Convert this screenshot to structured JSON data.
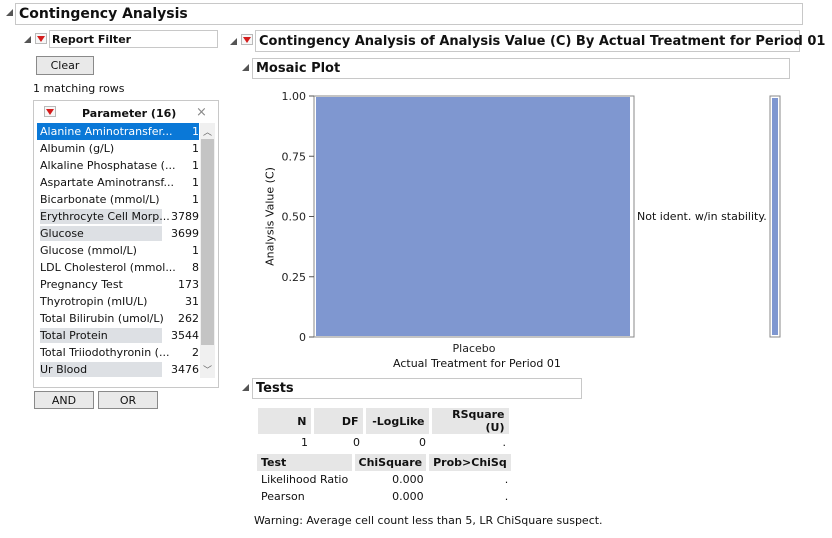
{
  "main": {
    "title": "Contingency Analysis"
  },
  "filter": {
    "title": "Report Filter",
    "clear_label": "Clear",
    "matching": "1 matching rows",
    "param_title": "Parameter (16)",
    "items": [
      {
        "label": "Alanine Aminotransfer...",
        "count": "1",
        "selected": true
      },
      {
        "label": "Albumin (g/L)",
        "count": "1"
      },
      {
        "label": "Alkaline Phosphatase (...",
        "count": "1"
      },
      {
        "label": "Aspartate Aminotransf...",
        "count": "1"
      },
      {
        "label": "Bicarbonate (mmol/L)",
        "count": "1"
      },
      {
        "label": "Erythrocyte Cell Morp...",
        "count": "3789",
        "bar": true
      },
      {
        "label": "Glucose",
        "count": "3699",
        "bar": true
      },
      {
        "label": "Glucose (mmol/L)",
        "count": "1"
      },
      {
        "label": "LDL Cholesterol (mmol...",
        "count": "8"
      },
      {
        "label": "Pregnancy Test",
        "count": "173"
      },
      {
        "label": "Thyrotropin (mIU/L)",
        "count": "31"
      },
      {
        "label": "Total Bilirubin (umol/L)",
        "count": "262"
      },
      {
        "label": "Total Protein",
        "count": "3544",
        "bar": true
      },
      {
        "label": "Total Triiodothyronin (...",
        "count": "2"
      },
      {
        "label": "Ur Blood",
        "count": "3476",
        "bar": true
      }
    ],
    "and_label": "AND",
    "or_label": "OR"
  },
  "analysis": {
    "title": "Contingency Analysis of Analysis Value (C) By Actual Treatment for Period 01"
  },
  "mosaic": {
    "title": "Mosaic Plot"
  },
  "chart_data": {
    "type": "bar",
    "categories": [
      "Placebo"
    ],
    "values": [
      1.0
    ],
    "xlabel": "Actual Treatment for Period 01",
    "ylabel": "Analysis Value (C)",
    "ylim": [
      0,
      1
    ],
    "yticks": [
      "1.00",
      "0.75",
      "0.50",
      "0.25",
      "0"
    ],
    "legend": "Not ident. w/in stability.",
    "bar_color": "#7f97d0"
  },
  "tests": {
    "title": "Tests",
    "summary_headers": [
      "N",
      "DF",
      "-LogLike",
      "RSquare (U)"
    ],
    "summary_values": [
      "1",
      "0",
      "0",
      "."
    ],
    "test_headers": [
      "Test",
      "ChiSquare",
      "Prob>ChiSq"
    ],
    "test_rows": [
      [
        "Likelihood Ratio",
        "0.000",
        "."
      ],
      [
        "Pearson",
        "0.000",
        "."
      ]
    ],
    "warning": "Warning: Average cell count less than 5, LR ChiSquare suspect."
  },
  "colors": {
    "selected": "#0a78d7",
    "bar_gray": "#dde0e4",
    "scroll": "#c4c4c4"
  }
}
